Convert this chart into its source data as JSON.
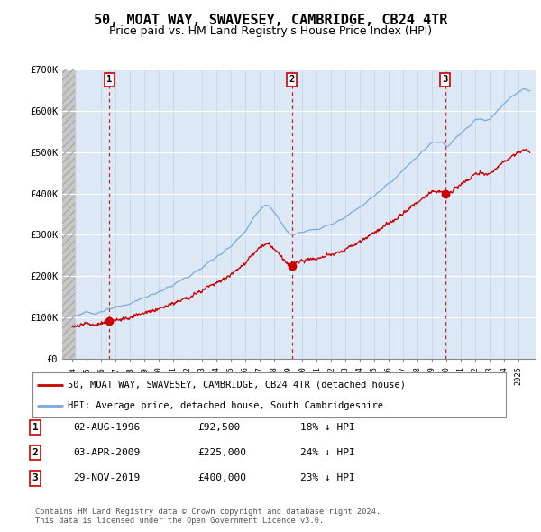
{
  "title": "50, MOAT WAY, SWAVESEY, CAMBRIDGE, CB24 4TR",
  "subtitle": "Price paid vs. HM Land Registry's House Price Index (HPI)",
  "ylim": [
    0,
    700000
  ],
  "yticks": [
    0,
    100000,
    200000,
    300000,
    400000,
    500000,
    600000,
    700000
  ],
  "ytick_labels": [
    "£0",
    "£100K",
    "£200K",
    "£300K",
    "£400K",
    "£500K",
    "£600K",
    "£700K"
  ],
  "sale_year_floats": [
    1996.583,
    2009.25,
    2019.917
  ],
  "sale_prices": [
    92500,
    225000,
    400000
  ],
  "sale_labels": [
    "1",
    "2",
    "3"
  ],
  "sale_pct_hpi": [
    "18% ↓ HPI",
    "24% ↓ HPI",
    "23% ↓ HPI"
  ],
  "sale_dates_display": [
    "02-AUG-1996",
    "03-APR-2009",
    "29-NOV-2019"
  ],
  "sale_prices_display": [
    "£92,500",
    "£225,000",
    "£400,000"
  ],
  "legend_label_red": "50, MOAT WAY, SWAVESEY, CAMBRIDGE, CB24 4TR (detached house)",
  "legend_label_blue": "HPI: Average price, detached house, South Cambridgeshire",
  "footer": "Contains HM Land Registry data © Crown copyright and database right 2024.\nThis data is licensed under the Open Government Licence v3.0.",
  "red_color": "#cc0000",
  "blue_color": "#7aaadd",
  "bg_plot": "#dce8f5",
  "title_fontsize": 11,
  "subtitle_fontsize": 9,
  "tick_fontsize": 7.5
}
